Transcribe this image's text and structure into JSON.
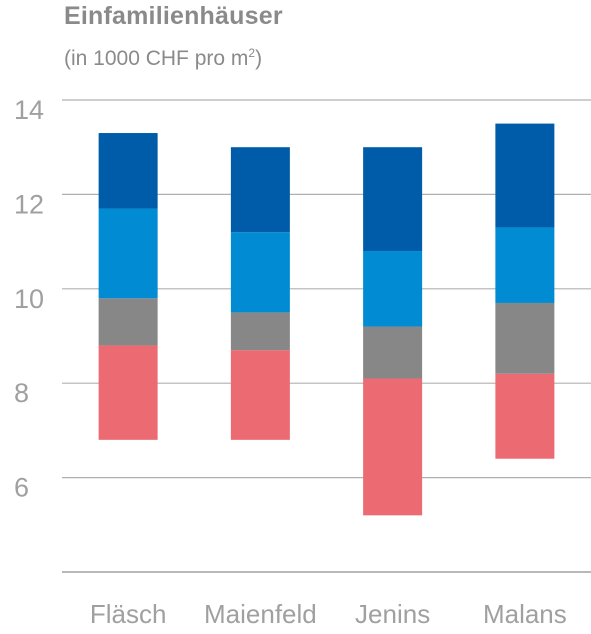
{
  "chart_data": {
    "type": "bar",
    "stacked": true,
    "title": "Einfamilienhäuser",
    "subtitle_prefix": "(in 1000 CHF pro m",
    "subtitle_sup": "2",
    "subtitle_suffix": ")",
    "categories": [
      "Fläsch",
      "Maienfeld",
      "Jenins",
      "Malans"
    ],
    "yticks": [
      6,
      8,
      10,
      12,
      14
    ],
    "ylim": [
      4.0,
      14.0
    ],
    "grid": true,
    "legend": "none",
    "series": [
      {
        "color": "#ec6b72",
        "bottoms": [
          6.8,
          6.8,
          5.2,
          6.4
        ],
        "tops": [
          8.8,
          8.7,
          8.1,
          8.2
        ]
      },
      {
        "color": "#878787",
        "bottoms": [
          8.8,
          8.7,
          8.1,
          8.2
        ],
        "tops": [
          9.8,
          9.5,
          9.2,
          9.7
        ]
      },
      {
        "color": "#008bd2",
        "bottoms": [
          9.8,
          9.5,
          9.2,
          9.7
        ],
        "tops": [
          11.7,
          11.2,
          10.8,
          11.3
        ]
      },
      {
        "color": "#005ca9",
        "bottoms": [
          11.7,
          11.2,
          10.8,
          11.3
        ],
        "tops": [
          13.3,
          13.0,
          13.0,
          13.5
        ]
      }
    ]
  }
}
